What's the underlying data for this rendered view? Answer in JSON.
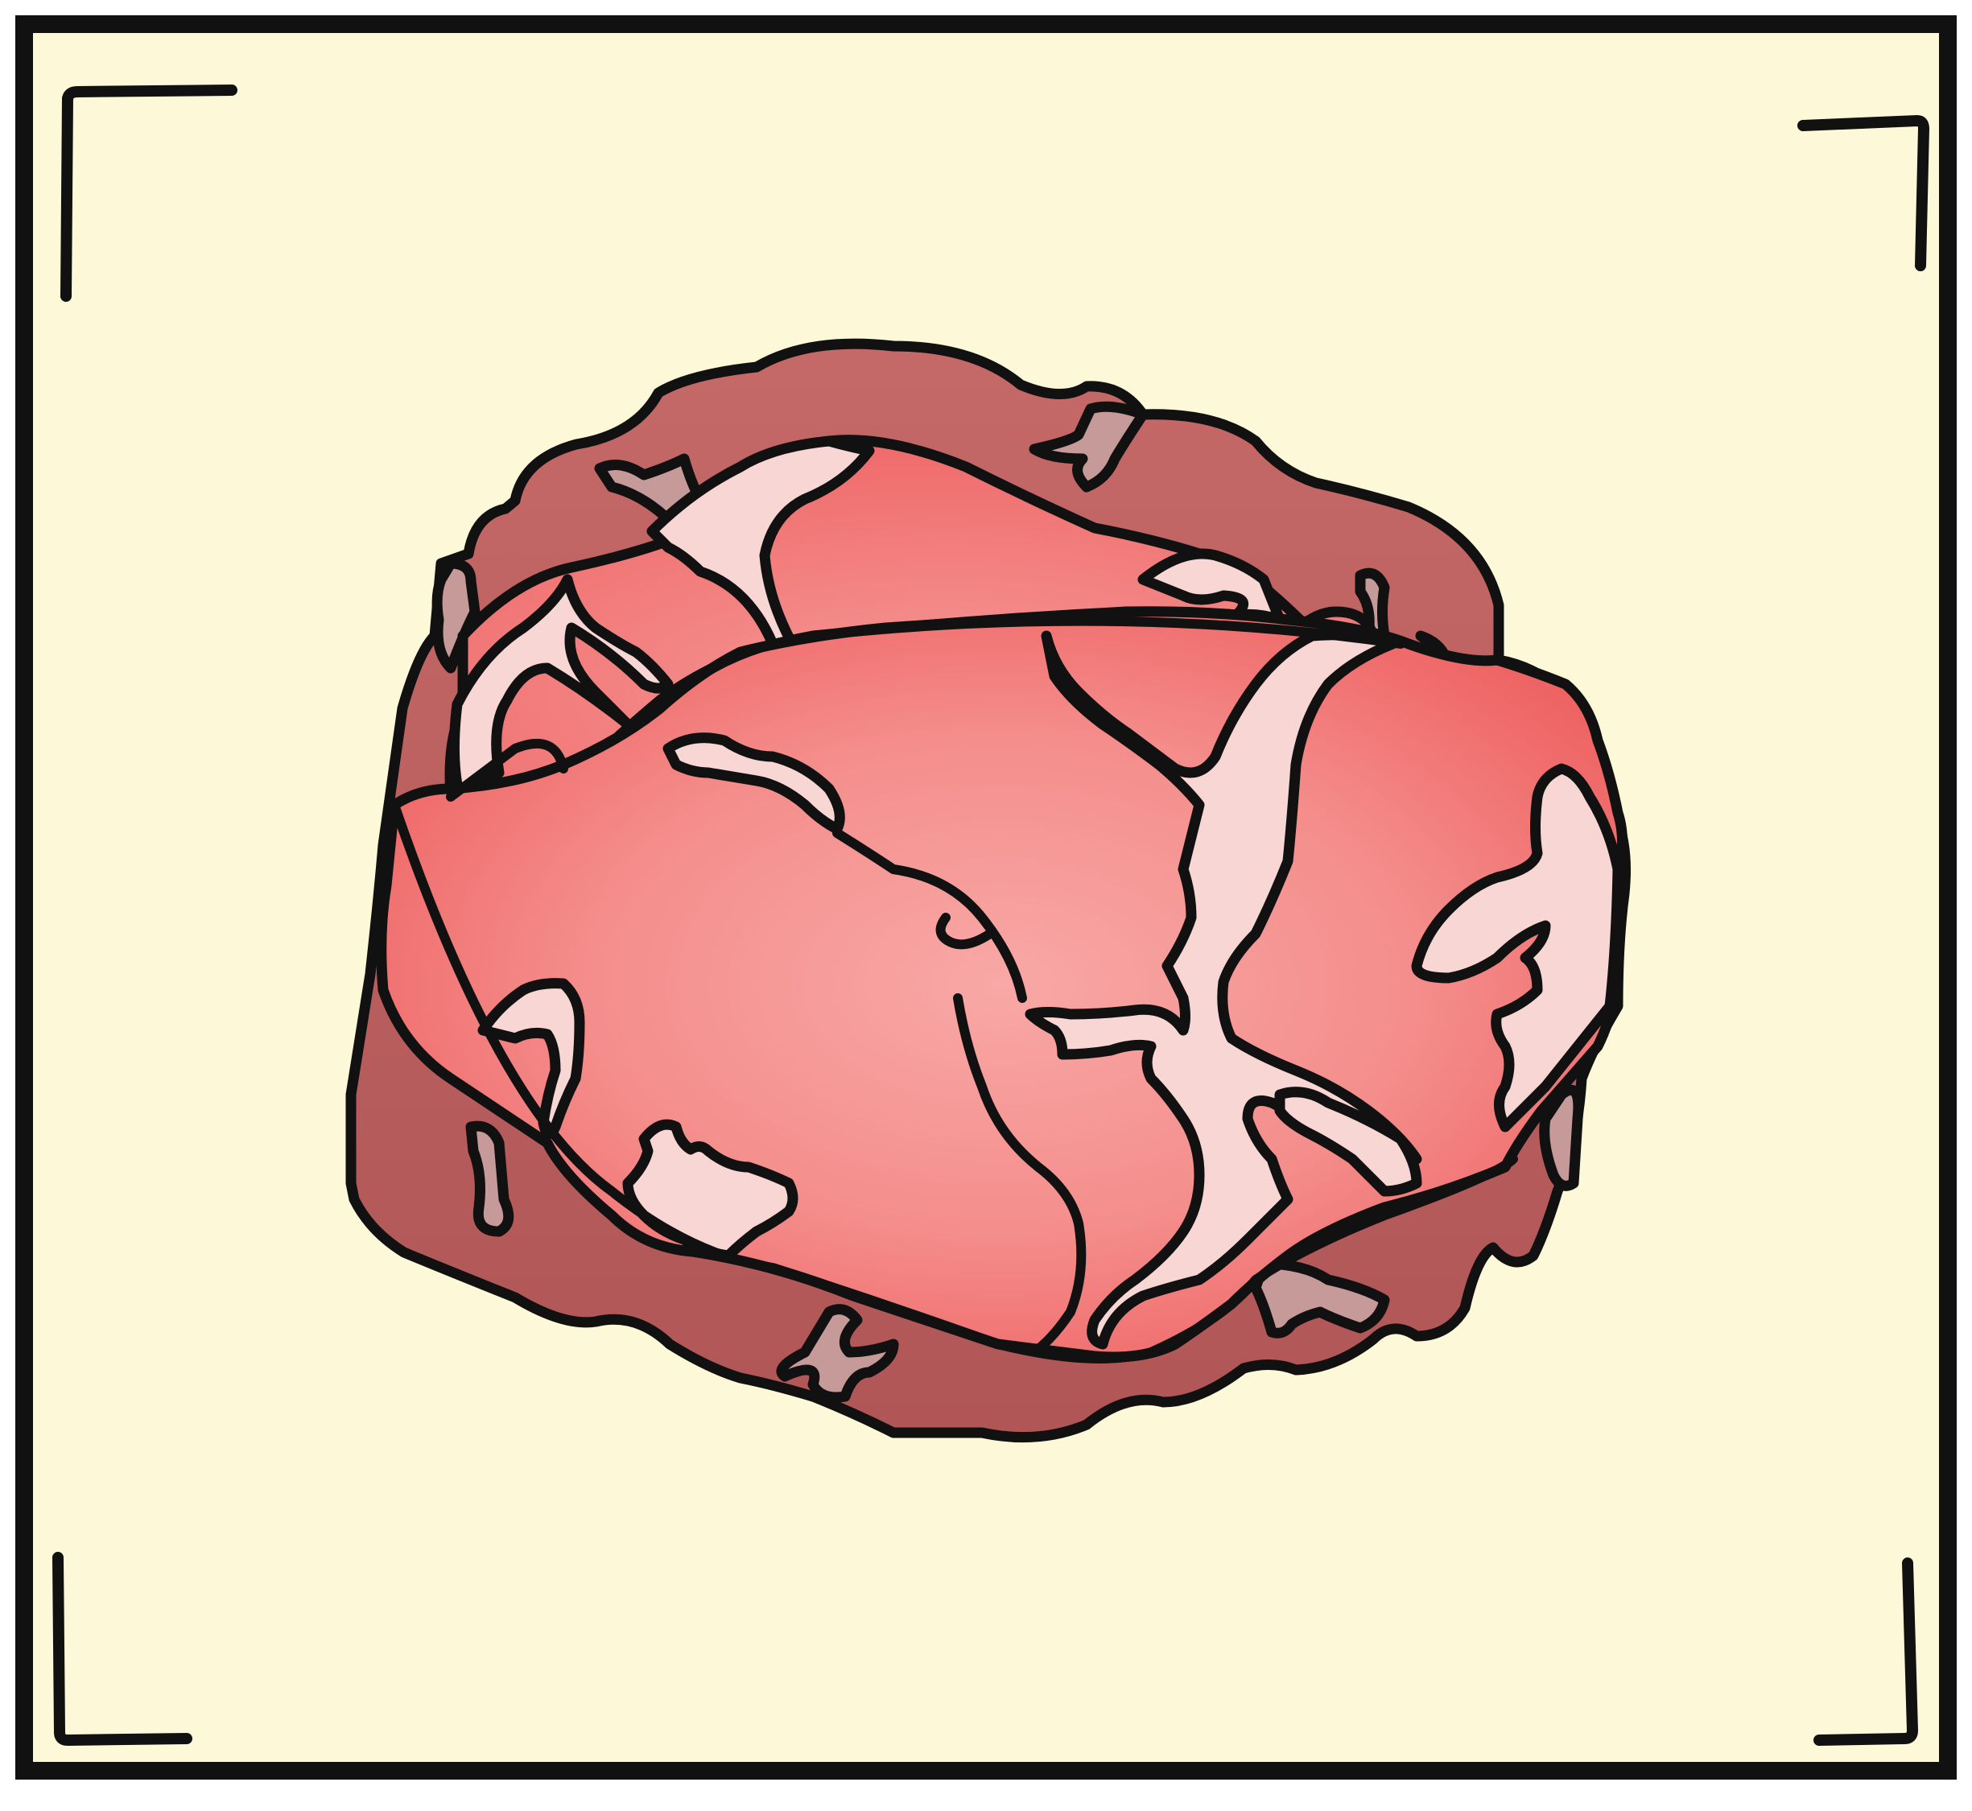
{
  "illustration": {
    "subject": "marbled-meat-chunk",
    "style": "hand-drawn-cartoon-icon",
    "colors": {
      "background": "#FDF9D8",
      "frame_outline": "#111111",
      "meat_bright_red": "#EF5A5A",
      "meat_pink": "#F39A98",
      "meat_dark_side": "#B85D5D",
      "fat_marbling": "#F7D6D3",
      "fat_shadow": "#C79A9A"
    },
    "corner_brackets": [
      "top-left",
      "top-right",
      "bottom-left",
      "bottom-right"
    ]
  }
}
